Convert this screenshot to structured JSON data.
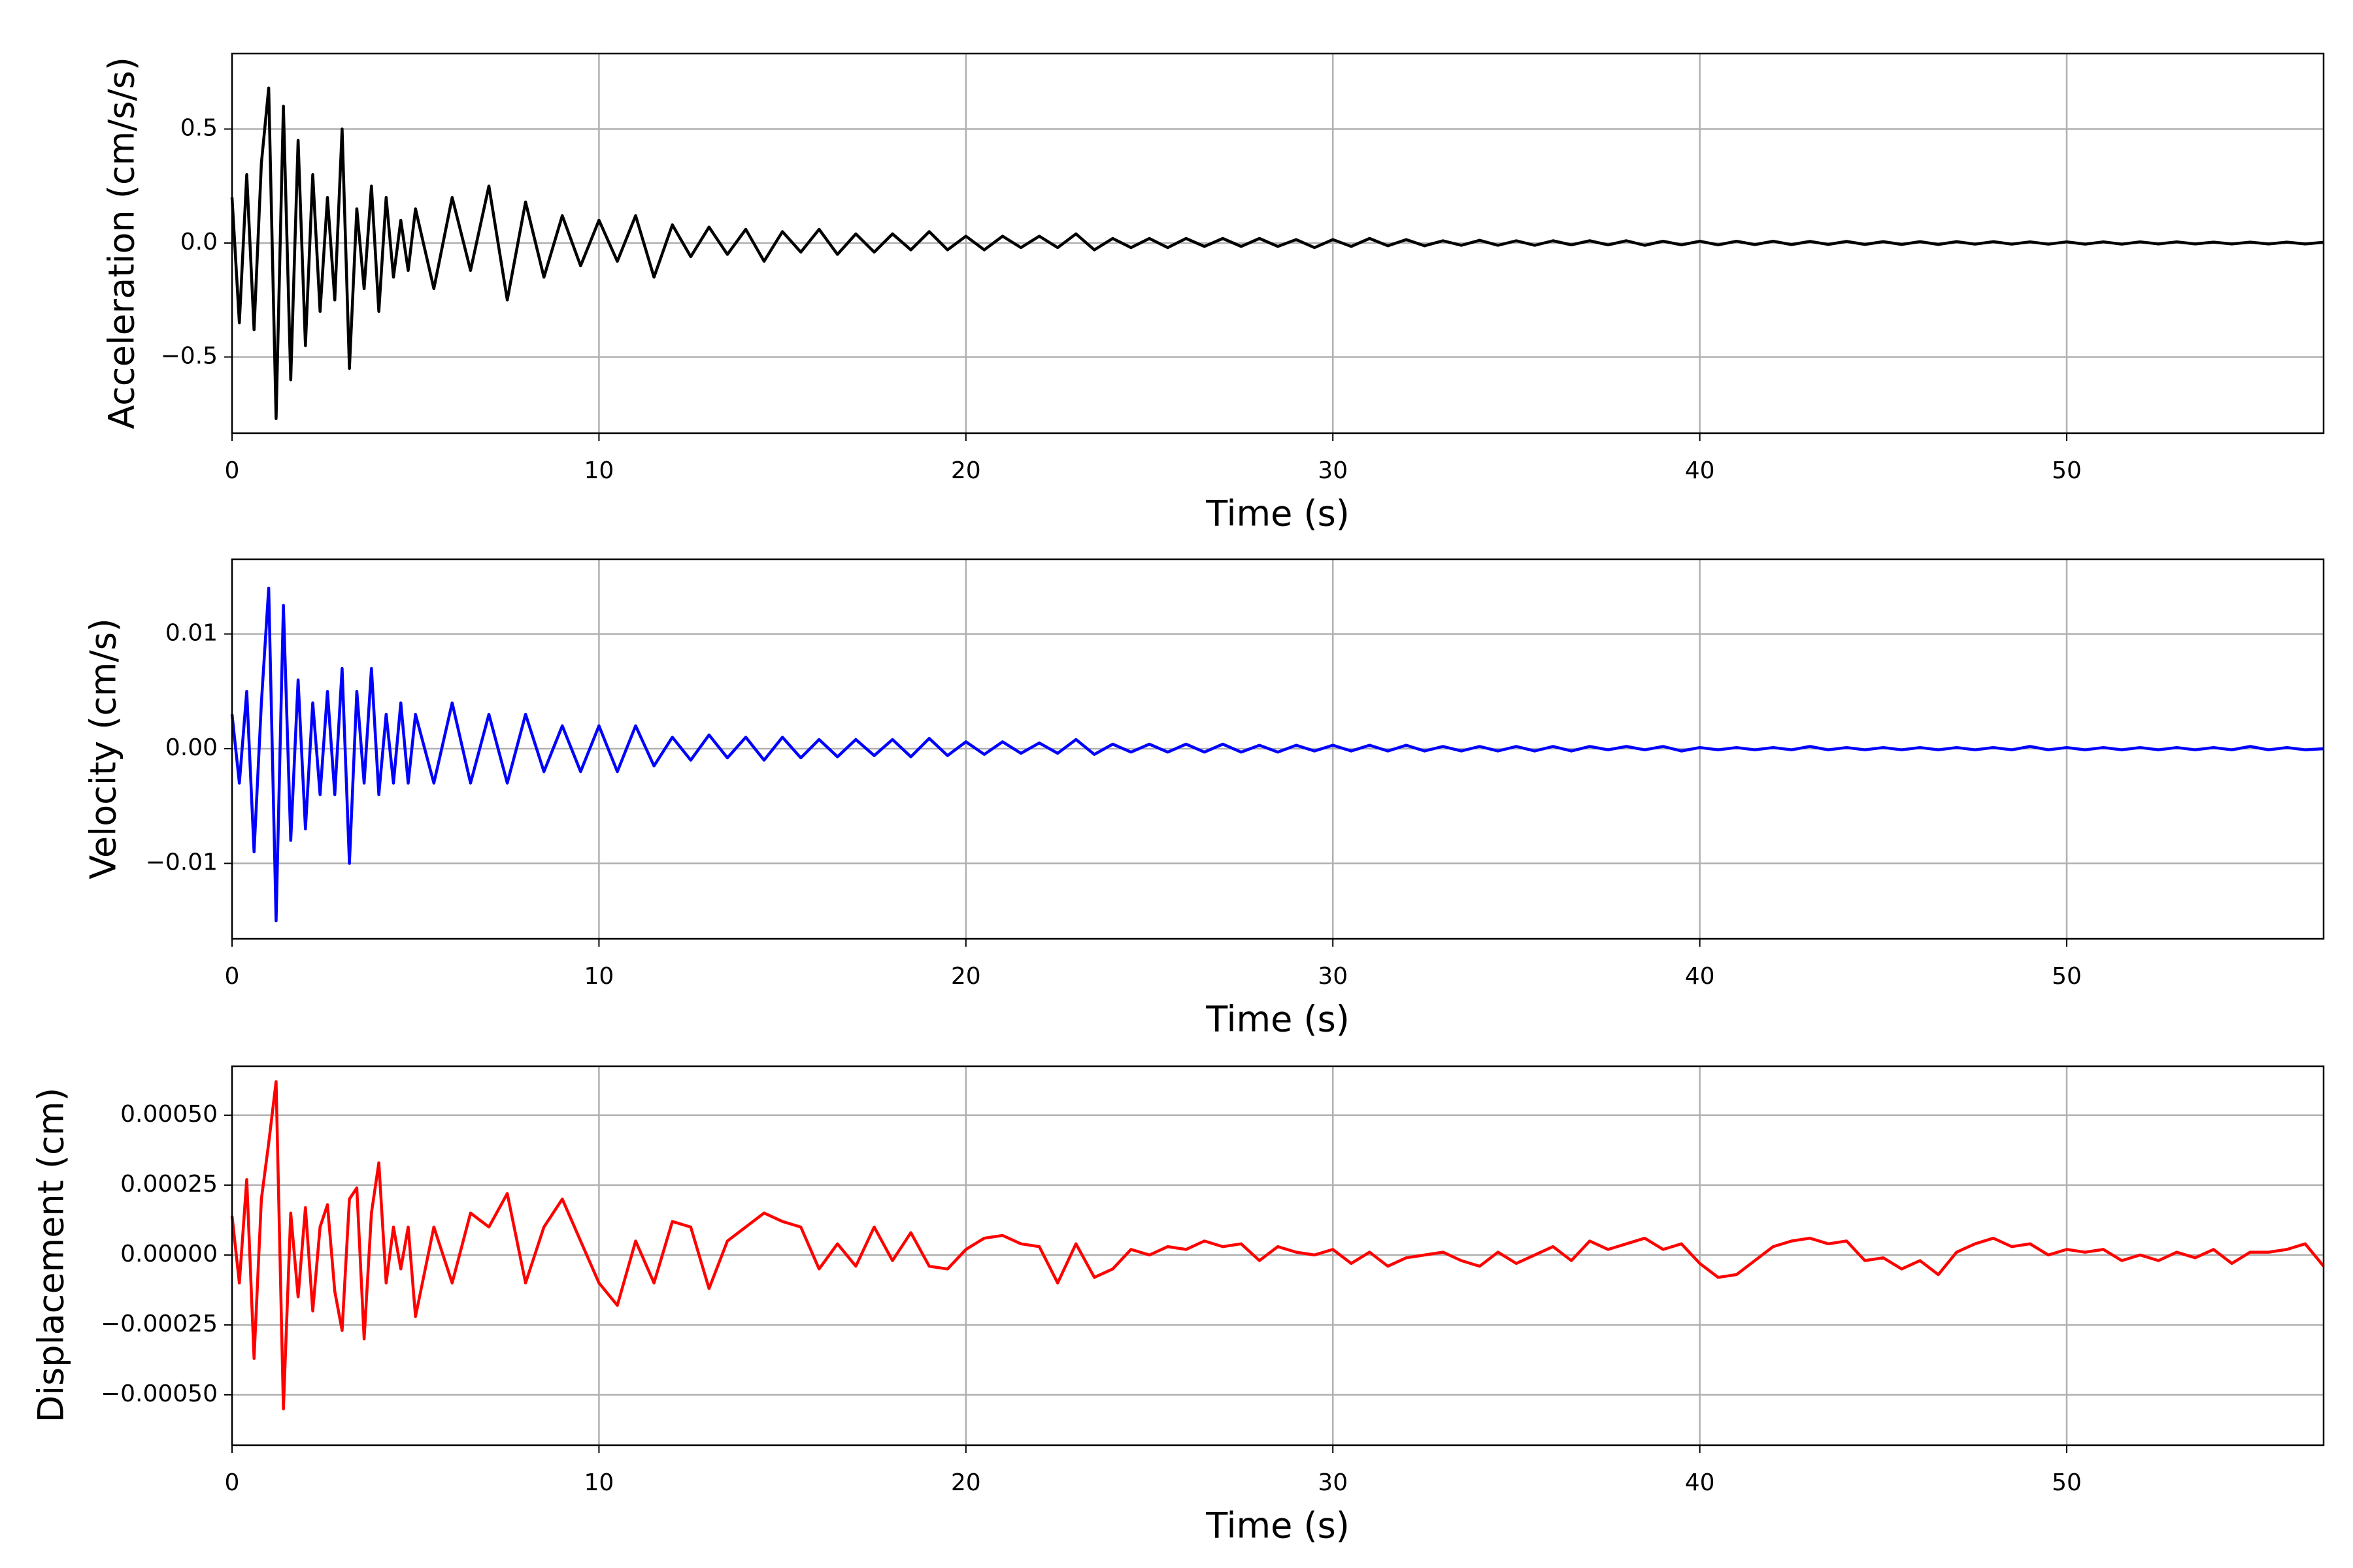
{
  "chart_data": [
    {
      "type": "line",
      "title": "",
      "xlabel": "Time (s)",
      "ylabel": "Acceleration (cm/s/s)",
      "xlim": [
        0,
        57
      ],
      "ylim": [
        -0.834,
        0.831
      ],
      "xticks": [
        0,
        10,
        20,
        30,
        40,
        50
      ],
      "xtick_labels": [
        "0",
        "10",
        "20",
        "30",
        "40",
        "50"
      ],
      "yticks": [
        -0.5,
        0.0,
        0.5
      ],
      "ytick_labels": [
        "−0.5",
        "0.0",
        "0.5"
      ],
      "grid": true,
      "color": "#000000",
      "series": [
        {
          "name": "acceleration",
          "values": [
            0.2,
            -0.35,
            0.3,
            -0.38,
            0.35,
            0.68,
            -0.77,
            0.6,
            -0.6,
            0.45,
            -0.45,
            0.3,
            -0.3,
            0.2,
            -0.25,
            0.5,
            -0.55,
            0.15,
            -0.2,
            0.25,
            -0.3,
            0.2,
            -0.15,
            0.1,
            -0.12,
            0.15,
            -0.2,
            0.2,
            -0.12,
            0.25,
            -0.25,
            0.18,
            -0.15,
            0.12,
            -0.1,
            0.1,
            -0.08,
            0.12,
            -0.15,
            0.08,
            -0.06,
            0.07,
            -0.05,
            0.06,
            -0.08,
            0.05,
            -0.04,
            0.06,
            -0.05,
            0.04,
            -0.04,
            0.04,
            -0.03,
            0.05,
            -0.03,
            0.03,
            -0.03,
            0.03,
            -0.02,
            0.03,
            -0.02,
            0.04,
            -0.03,
            0.02,
            -0.02,
            0.02,
            -0.02,
            0.02,
            -0.015,
            0.02,
            -0.015,
            0.02,
            -0.015,
            0.015,
            -0.02,
            0.015,
            -0.015,
            0.02,
            -0.012,
            0.015,
            -0.012,
            0.01,
            -0.01,
            0.012,
            -0.01,
            0.01,
            -0.01,
            0.01,
            -0.008,
            0.01,
            -0.008,
            0.01,
            -0.01,
            0.008,
            -0.008,
            0.008,
            -0.008,
            0.008,
            -0.007,
            0.008,
            -0.007,
            0.007,
            -0.006,
            0.007,
            -0.006,
            0.006,
            -0.006,
            0.006,
            -0.006,
            0.006,
            -0.005,
            0.006,
            -0.005,
            0.005,
            -0.005,
            0.005,
            -0.005,
            0.005,
            -0.005,
            0.005,
            -0.004,
            0.005,
            -0.004,
            0.004,
            -0.004,
            0.004,
            -0.004,
            0.004,
            -0.004,
            0.003
          ]
        }
      ]
    },
    {
      "type": "line",
      "title": "",
      "xlabel": "Time (s)",
      "ylabel": "Velocity (cm/s)",
      "xlim": [
        0,
        57
      ],
      "ylim": [
        -0.01658,
        0.01652
      ],
      "xticks": [
        0,
        10,
        20,
        30,
        40,
        50
      ],
      "xtick_labels": [
        "0",
        "10",
        "20",
        "30",
        "40",
        "50"
      ],
      "yticks": [
        -0.01,
        0.0,
        0.01
      ],
      "ytick_labels": [
        "−0.01",
        "0.00",
        "0.01"
      ],
      "grid": true,
      "color": "#0000ff",
      "series": [
        {
          "name": "velocity",
          "values": [
            0.003,
            -0.003,
            0.005,
            -0.009,
            0.004,
            0.014,
            -0.015,
            0.0125,
            -0.008,
            0.006,
            -0.007,
            0.004,
            -0.004,
            0.005,
            -0.004,
            0.007,
            -0.01,
            0.005,
            -0.003,
            0.007,
            -0.004,
            0.003,
            -0.003,
            0.004,
            -0.003,
            0.003,
            -0.003,
            0.004,
            -0.003,
            0.003,
            -0.003,
            0.003,
            -0.002,
            0.002,
            -0.002,
            0.002,
            -0.002,
            0.002,
            -0.0015,
            0.001,
            -0.001,
            0.0012,
            -0.0008,
            0.001,
            -0.001,
            0.001,
            -0.0008,
            0.0008,
            -0.0007,
            0.0008,
            -0.0006,
            0.0008,
            -0.0007,
            0.0009,
            -0.0006,
            0.0006,
            -0.0005,
            0.0006,
            -0.0004,
            0.0005,
            -0.0004,
            0.0008,
            -0.0005,
            0.0004,
            -0.0003,
            0.0004,
            -0.0003,
            0.0004,
            -0.0003,
            0.0004,
            -0.0003,
            0.0003,
            -0.0003,
            0.0003,
            -0.0002,
            0.0003,
            -0.0002,
            0.0003,
            -0.0002,
            0.0003,
            -0.0002,
            0.0002,
            -0.0002,
            0.0002,
            -0.0002,
            0.0002,
            -0.0002,
            0.0002,
            -0.0002,
            0.0002,
            -0.0001,
            0.0002,
            -0.0001,
            0.0002,
            -0.0002,
            0.0001,
            -0.0001,
            0.0001,
            -0.0001,
            0.0001,
            -0.0001,
            0.0002,
            -0.0001,
            0.0001,
            -0.0001,
            0.0001,
            -0.0001,
            0.0001,
            -0.0001,
            0.0001,
            -0.0001,
            0.0001,
            -0.0001,
            0.0002,
            -0.0001,
            0.0001,
            -0.0001,
            0.0001,
            -0.0001,
            0.0001,
            -0.0001,
            0.0001,
            -0.0001,
            0.0001,
            -0.0001,
            0.0002,
            -0.0001,
            0.0001,
            -0.0001,
            0.0
          ]
        }
      ]
    },
    {
      "type": "line",
      "title": "",
      "xlabel": "Time (s)",
      "ylabel": "Displacement (cm)",
      "xlim": [
        0,
        57
      ],
      "ylim": [
        -0.00068,
        0.000675
      ],
      "xticks": [
        0,
        10,
        20,
        30,
        40,
        50
      ],
      "xtick_labels": [
        "0",
        "10",
        "20",
        "30",
        "40",
        "50"
      ],
      "yticks": [
        -0.0005,
        -0.00025,
        0.0,
        0.00025,
        0.0005
      ],
      "ytick_labels": [
        "−0.00050",
        "−0.00025",
        "0.00000",
        "0.00025",
        "0.00050"
      ],
      "grid": true,
      "color": "#ff0000",
      "series": [
        {
          "name": "displacement",
          "values": [
            0.00014,
            -0.0001,
            0.00027,
            -0.00037,
            0.0002,
            0.0004,
            0.00062,
            -0.00055,
            0.00015,
            -0.00015,
            0.00017,
            -0.0002,
            0.0001,
            0.00018,
            -0.00013,
            -0.00027,
            0.0002,
            0.00024,
            -0.0003,
            0.00015,
            0.00033,
            -0.0001,
            0.0001,
            -5e-05,
            0.0001,
            -0.00022,
            0.0001,
            -0.0001,
            0.00015,
            0.0001,
            0.00022,
            -0.0001,
            0.0001,
            0.0002,
            5e-05,
            -0.0001,
            -0.00018,
            5e-05,
            -0.0001,
            0.00012,
            0.0001,
            -0.00012,
            5e-05,
            0.0001,
            0.00015,
            0.00012,
            0.0001,
            -5e-05,
            4e-05,
            -4e-05,
            0.0001,
            -2e-05,
            8e-05,
            -4e-05,
            -5e-05,
            2e-05,
            6e-05,
            7e-05,
            4e-05,
            3e-05,
            -0.0001,
            4e-05,
            -8e-05,
            -5e-05,
            2e-05,
            0.0,
            3e-05,
            2e-05,
            5e-05,
            3e-05,
            4e-05,
            -2e-05,
            3e-05,
            1e-05,
            0.0,
            2e-05,
            -3e-05,
            1e-05,
            -4e-05,
            -1e-05,
            0.0,
            1e-05,
            -2e-05,
            -4e-05,
            1e-05,
            -3e-05,
            0.0,
            3e-05,
            -2e-05,
            5e-05,
            2e-05,
            4e-05,
            6e-05,
            2e-05,
            4e-05,
            -3e-05,
            -8e-05,
            -7e-05,
            -2e-05,
            3e-05,
            5e-05,
            6e-05,
            4e-05,
            5e-05,
            -2e-05,
            -1e-05,
            -5e-05,
            -2e-05,
            -7e-05,
            1e-05,
            4e-05,
            6e-05,
            3e-05,
            4e-05,
            0.0,
            2e-05,
            1e-05,
            2e-05,
            -2e-05,
            0.0,
            -2e-05,
            1e-05,
            -1e-05,
            2e-05,
            -3e-05,
            1e-05,
            1e-05,
            2e-05,
            4e-05,
            -4e-05
          ]
        }
      ]
    }
  ],
  "x": [
    0,
    0.2,
    0.4,
    0.6,
    0.8,
    1.0,
    1.2,
    1.4,
    1.6,
    1.8,
    2.0,
    2.2,
    2.4,
    2.6,
    2.8,
    3.0,
    3.2,
    3.4,
    3.6,
    3.8,
    4.0,
    4.2,
    4.4,
    4.6,
    4.8,
    5,
    5.5,
    6,
    6.5,
    7,
    7.5,
    8,
    8.5,
    9,
    9.5,
    10,
    10.5,
    11,
    11.5,
    12,
    12.5,
    13,
    13.5,
    14,
    14.5,
    15,
    15.5,
    16,
    16.5,
    17,
    17.5,
    18,
    18.5,
    19,
    19.5,
    20,
    20.5,
    21,
    21.5,
    22,
    22.5,
    23,
    23.5,
    24,
    24.5,
    25,
    25.5,
    26,
    26.5,
    27,
    27.5,
    28,
    28.5,
    29,
    29.5,
    30,
    30.5,
    31,
    31.5,
    32,
    32.5,
    33,
    33.5,
    34,
    34.5,
    35,
    35.5,
    36,
    36.5,
    37,
    37.5,
    38,
    38.5,
    39,
    39.5,
    40,
    40.5,
    41,
    41.5,
    42,
    42.5,
    43,
    43.5,
    44,
    44.5,
    45,
    45.5,
    46,
    46.5,
    47,
    47.5,
    48,
    48.5,
    49,
    49.5,
    50,
    50.5,
    51,
    51.5,
    52,
    52.5,
    53,
    53.5,
    54,
    54.5,
    55,
    55.5,
    56,
    56.5,
    57
  ]
}
